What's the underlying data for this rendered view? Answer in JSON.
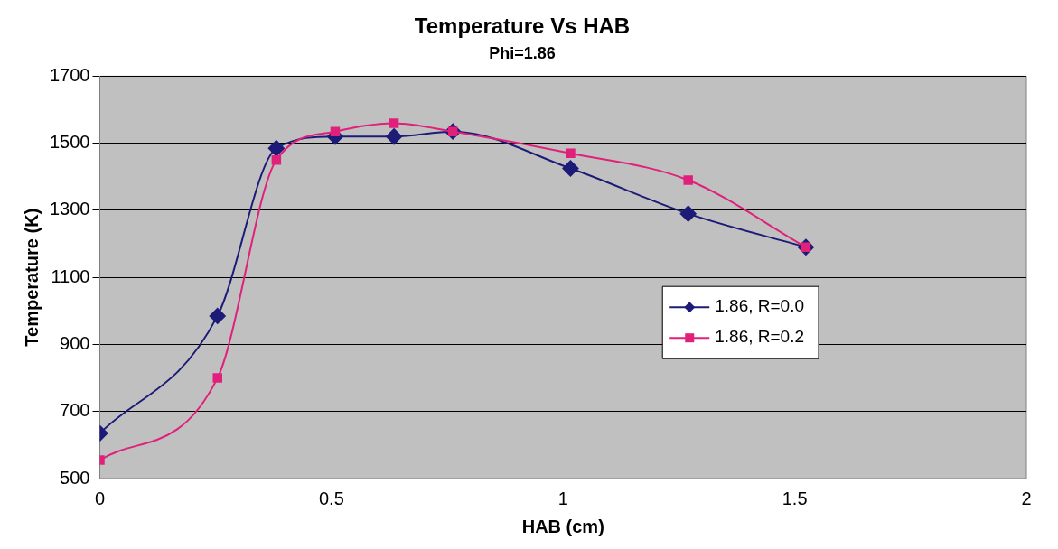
{
  "chart_data": {
    "type": "line",
    "title": "Temperature Vs HAB",
    "subtitle": "Phi=1.86",
    "xlabel": "HAB (cm)",
    "ylabel": "Temperature (K)",
    "xlim": [
      0,
      2
    ],
    "xticks": [
      0,
      0.5,
      1,
      1.5,
      2
    ],
    "ylim": [
      500,
      1700
    ],
    "yticks": [
      500,
      700,
      900,
      1100,
      1300,
      1500,
      1700
    ],
    "grid": "y",
    "legend": "right",
    "line_style": "solid",
    "series": [
      {
        "name": "1.86, R=0.0",
        "color": "#1c1c78",
        "marker": "diamond",
        "x": [
          0,
          0.254,
          0.381,
          0.508,
          0.635,
          0.762,
          1.016,
          1.27,
          1.524
        ],
        "values": [
          635,
          985,
          1485,
          1520,
          1520,
          1535,
          1425,
          1290,
          1190
        ]
      },
      {
        "name": "1.86, R=0.2",
        "color": "#e0207a",
        "marker": "square",
        "x": [
          0,
          0.254,
          0.381,
          0.508,
          0.635,
          0.762,
          1.016,
          1.27,
          1.524
        ],
        "values": [
          555,
          800,
          1450,
          1535,
          1560,
          1535,
          1470,
          1390,
          1190
        ]
      }
    ]
  }
}
